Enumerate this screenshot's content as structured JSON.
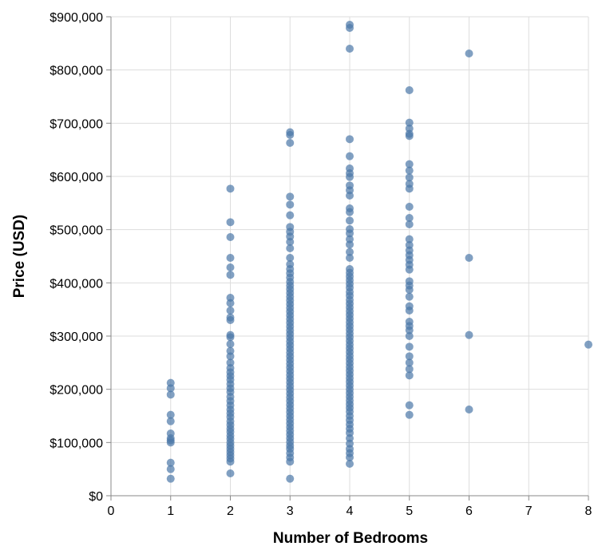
{
  "chart_data": {
    "type": "scatter",
    "title": "",
    "xlabel": "Number of Bedrooms",
    "ylabel": "Price (USD)",
    "xlim": [
      0,
      8
    ],
    "ylim": [
      0,
      900000
    ],
    "x_ticks": [
      "0",
      "1",
      "2",
      "3",
      "4",
      "5",
      "6",
      "7",
      "8"
    ],
    "y_ticks": [
      "$0",
      "$100,000",
      "$200,000",
      "$300,000",
      "$400,000",
      "$500,000",
      "$600,000",
      "$700,000",
      "$800,000",
      "$900,000"
    ],
    "grid": true,
    "point_color": "#4c78a8",
    "point_opacity": 0.7,
    "series": [
      {
        "points": [
          {
            "x": 1,
            "y": 212000
          },
          {
            "x": 1,
            "y": 202000
          },
          {
            "x": 1,
            "y": 190000
          },
          {
            "x": 1,
            "y": 152000
          },
          {
            "x": 1,
            "y": 140000
          },
          {
            "x": 1,
            "y": 117000
          },
          {
            "x": 1,
            "y": 108000
          },
          {
            "x": 1,
            "y": 104000
          },
          {
            "x": 1,
            "y": 100000
          },
          {
            "x": 1,
            "y": 62000
          },
          {
            "x": 1,
            "y": 50000
          },
          {
            "x": 1,
            "y": 32000
          },
          {
            "x": 2,
            "y": 577000
          },
          {
            "x": 2,
            "y": 514000
          },
          {
            "x": 2,
            "y": 486000
          },
          {
            "x": 2,
            "y": 447000
          },
          {
            "x": 2,
            "y": 429000
          },
          {
            "x": 2,
            "y": 415000
          },
          {
            "x": 2,
            "y": 372000
          },
          {
            "x": 2,
            "y": 362000
          },
          {
            "x": 2,
            "y": 348000
          },
          {
            "x": 2,
            "y": 335000
          },
          {
            "x": 2,
            "y": 330000
          },
          {
            "x": 2,
            "y": 302000
          },
          {
            "x": 2,
            "y": 298000
          },
          {
            "x": 2,
            "y": 285000
          },
          {
            "x": 2,
            "y": 272000
          },
          {
            "x": 2,
            "y": 262000
          },
          {
            "x": 2,
            "y": 250000
          },
          {
            "x": 2,
            "y": 240000
          },
          {
            "x": 2,
            "y": 232000
          },
          {
            "x": 2,
            "y": 225000
          },
          {
            "x": 2,
            "y": 218000
          },
          {
            "x": 2,
            "y": 210000
          },
          {
            "x": 2,
            "y": 202000
          },
          {
            "x": 2,
            "y": 195000
          },
          {
            "x": 2,
            "y": 186000
          },
          {
            "x": 2,
            "y": 178000
          },
          {
            "x": 2,
            "y": 170000
          },
          {
            "x": 2,
            "y": 162000
          },
          {
            "x": 2,
            "y": 155000
          },
          {
            "x": 2,
            "y": 148000
          },
          {
            "x": 2,
            "y": 140000
          },
          {
            "x": 2,
            "y": 133000
          },
          {
            "x": 2,
            "y": 126000
          },
          {
            "x": 2,
            "y": 120000
          },
          {
            "x": 2,
            "y": 113000
          },
          {
            "x": 2,
            "y": 107000
          },
          {
            "x": 2,
            "y": 100000
          },
          {
            "x": 2,
            "y": 94000
          },
          {
            "x": 2,
            "y": 88000
          },
          {
            "x": 2,
            "y": 82000
          },
          {
            "x": 2,
            "y": 76000
          },
          {
            "x": 2,
            "y": 70000
          },
          {
            "x": 2,
            "y": 64000
          },
          {
            "x": 2,
            "y": 42000
          },
          {
            "x": 3,
            "y": 683000
          },
          {
            "x": 3,
            "y": 678000
          },
          {
            "x": 3,
            "y": 663000
          },
          {
            "x": 3,
            "y": 562000
          },
          {
            "x": 3,
            "y": 547000
          },
          {
            "x": 3,
            "y": 527000
          },
          {
            "x": 3,
            "y": 505000
          },
          {
            "x": 3,
            "y": 496000
          },
          {
            "x": 3,
            "y": 487000
          },
          {
            "x": 3,
            "y": 477000
          },
          {
            "x": 3,
            "y": 465000
          },
          {
            "x": 3,
            "y": 447000
          },
          {
            "x": 3,
            "y": 435000
          },
          {
            "x": 3,
            "y": 426000
          },
          {
            "x": 3,
            "y": 418000
          },
          {
            "x": 3,
            "y": 410000
          },
          {
            "x": 3,
            "y": 402000
          },
          {
            "x": 3,
            "y": 395000
          },
          {
            "x": 3,
            "y": 388000
          },
          {
            "x": 3,
            "y": 381000
          },
          {
            "x": 3,
            "y": 374000
          },
          {
            "x": 3,
            "y": 367000
          },
          {
            "x": 3,
            "y": 360000
          },
          {
            "x": 3,
            "y": 353000
          },
          {
            "x": 3,
            "y": 346000
          },
          {
            "x": 3,
            "y": 339000
          },
          {
            "x": 3,
            "y": 332000
          },
          {
            "x": 3,
            "y": 325000
          },
          {
            "x": 3,
            "y": 318000
          },
          {
            "x": 3,
            "y": 311000
          },
          {
            "x": 3,
            "y": 304000
          },
          {
            "x": 3,
            "y": 297000
          },
          {
            "x": 3,
            "y": 290000
          },
          {
            "x": 3,
            "y": 283000
          },
          {
            "x": 3,
            "y": 276000
          },
          {
            "x": 3,
            "y": 269000
          },
          {
            "x": 3,
            "y": 262000
          },
          {
            "x": 3,
            "y": 255000
          },
          {
            "x": 3,
            "y": 248000
          },
          {
            "x": 3,
            "y": 241000
          },
          {
            "x": 3,
            "y": 234000
          },
          {
            "x": 3,
            "y": 227000
          },
          {
            "x": 3,
            "y": 220000
          },
          {
            "x": 3,
            "y": 213000
          },
          {
            "x": 3,
            "y": 206000
          },
          {
            "x": 3,
            "y": 199000
          },
          {
            "x": 3,
            "y": 192000
          },
          {
            "x": 3,
            "y": 185000
          },
          {
            "x": 3,
            "y": 178000
          },
          {
            "x": 3,
            "y": 171000
          },
          {
            "x": 3,
            "y": 164000
          },
          {
            "x": 3,
            "y": 157000
          },
          {
            "x": 3,
            "y": 150000
          },
          {
            "x": 3,
            "y": 143000
          },
          {
            "x": 3,
            "y": 136000
          },
          {
            "x": 3,
            "y": 129000
          },
          {
            "x": 3,
            "y": 122000
          },
          {
            "x": 3,
            "y": 115000
          },
          {
            "x": 3,
            "y": 108000
          },
          {
            "x": 3,
            "y": 101000
          },
          {
            "x": 3,
            "y": 94000
          },
          {
            "x": 3,
            "y": 88000
          },
          {
            "x": 3,
            "y": 80000
          },
          {
            "x": 3,
            "y": 72000
          },
          {
            "x": 3,
            "y": 64000
          },
          {
            "x": 3,
            "y": 32000
          },
          {
            "x": 4,
            "y": 885000
          },
          {
            "x": 4,
            "y": 879000
          },
          {
            "x": 4,
            "y": 840000
          },
          {
            "x": 4,
            "y": 670000
          },
          {
            "x": 4,
            "y": 638000
          },
          {
            "x": 4,
            "y": 615000
          },
          {
            "x": 4,
            "y": 606000
          },
          {
            "x": 4,
            "y": 599000
          },
          {
            "x": 4,
            "y": 583000
          },
          {
            "x": 4,
            "y": 574000
          },
          {
            "x": 4,
            "y": 564000
          },
          {
            "x": 4,
            "y": 540000
          },
          {
            "x": 4,
            "y": 533000
          },
          {
            "x": 4,
            "y": 517000
          },
          {
            "x": 4,
            "y": 501000
          },
          {
            "x": 4,
            "y": 493000
          },
          {
            "x": 4,
            "y": 482000
          },
          {
            "x": 4,
            "y": 472000
          },
          {
            "x": 4,
            "y": 458000
          },
          {
            "x": 4,
            "y": 447000
          },
          {
            "x": 4,
            "y": 426000
          },
          {
            "x": 4,
            "y": 419000
          },
          {
            "x": 4,
            "y": 412000
          },
          {
            "x": 4,
            "y": 405000
          },
          {
            "x": 4,
            "y": 398000
          },
          {
            "x": 4,
            "y": 391000
          },
          {
            "x": 4,
            "y": 383000
          },
          {
            "x": 4,
            "y": 376000
          },
          {
            "x": 4,
            "y": 368000
          },
          {
            "x": 4,
            "y": 361000
          },
          {
            "x": 4,
            "y": 354000
          },
          {
            "x": 4,
            "y": 347000
          },
          {
            "x": 4,
            "y": 340000
          },
          {
            "x": 4,
            "y": 333000
          },
          {
            "x": 4,
            "y": 326000
          },
          {
            "x": 4,
            "y": 319000
          },
          {
            "x": 4,
            "y": 312000
          },
          {
            "x": 4,
            "y": 305000
          },
          {
            "x": 4,
            "y": 298000
          },
          {
            "x": 4,
            "y": 291000
          },
          {
            "x": 4,
            "y": 284000
          },
          {
            "x": 4,
            "y": 277000
          },
          {
            "x": 4,
            "y": 270000
          },
          {
            "x": 4,
            "y": 263000
          },
          {
            "x": 4,
            "y": 256000
          },
          {
            "x": 4,
            "y": 249000
          },
          {
            "x": 4,
            "y": 242000
          },
          {
            "x": 4,
            "y": 235000
          },
          {
            "x": 4,
            "y": 228000
          },
          {
            "x": 4,
            "y": 221000
          },
          {
            "x": 4,
            "y": 214000
          },
          {
            "x": 4,
            "y": 207000
          },
          {
            "x": 4,
            "y": 200000
          },
          {
            "x": 4,
            "y": 193000
          },
          {
            "x": 4,
            "y": 186000
          },
          {
            "x": 4,
            "y": 179000
          },
          {
            "x": 4,
            "y": 172000
          },
          {
            "x": 4,
            "y": 165000
          },
          {
            "x": 4,
            "y": 158000
          },
          {
            "x": 4,
            "y": 150000
          },
          {
            "x": 4,
            "y": 142000
          },
          {
            "x": 4,
            "y": 134000
          },
          {
            "x": 4,
            "y": 126000
          },
          {
            "x": 4,
            "y": 118000
          },
          {
            "x": 4,
            "y": 108000
          },
          {
            "x": 4,
            "y": 98000
          },
          {
            "x": 4,
            "y": 88000
          },
          {
            "x": 4,
            "y": 80000
          },
          {
            "x": 4,
            "y": 72000
          },
          {
            "x": 4,
            "y": 60000
          },
          {
            "x": 5,
            "y": 762000
          },
          {
            "x": 5,
            "y": 701000
          },
          {
            "x": 5,
            "y": 690000
          },
          {
            "x": 5,
            "y": 680000
          },
          {
            "x": 5,
            "y": 676000
          },
          {
            "x": 5,
            "y": 623000
          },
          {
            "x": 5,
            "y": 611000
          },
          {
            "x": 5,
            "y": 598000
          },
          {
            "x": 5,
            "y": 586000
          },
          {
            "x": 5,
            "y": 577000
          },
          {
            "x": 5,
            "y": 543000
          },
          {
            "x": 5,
            "y": 522000
          },
          {
            "x": 5,
            "y": 510000
          },
          {
            "x": 5,
            "y": 482000
          },
          {
            "x": 5,
            "y": 471000
          },
          {
            "x": 5,
            "y": 461000
          },
          {
            "x": 5,
            "y": 452000
          },
          {
            "x": 5,
            "y": 443000
          },
          {
            "x": 5,
            "y": 434000
          },
          {
            "x": 5,
            "y": 425000
          },
          {
            "x": 5,
            "y": 403000
          },
          {
            "x": 5,
            "y": 395000
          },
          {
            "x": 5,
            "y": 387000
          },
          {
            "x": 5,
            "y": 374000
          },
          {
            "x": 5,
            "y": 356000
          },
          {
            "x": 5,
            "y": 348000
          },
          {
            "x": 5,
            "y": 327000
          },
          {
            "x": 5,
            "y": 319000
          },
          {
            "x": 5,
            "y": 311000
          },
          {
            "x": 5,
            "y": 300000
          },
          {
            "x": 5,
            "y": 280000
          },
          {
            "x": 5,
            "y": 262000
          },
          {
            "x": 5,
            "y": 250000
          },
          {
            "x": 5,
            "y": 238000
          },
          {
            "x": 5,
            "y": 226000
          },
          {
            "x": 5,
            "y": 170000
          },
          {
            "x": 5,
            "y": 152000
          },
          {
            "x": 6,
            "y": 831000
          },
          {
            "x": 6,
            "y": 447000
          },
          {
            "x": 6,
            "y": 302000
          },
          {
            "x": 6,
            "y": 162000
          },
          {
            "x": 8,
            "y": 284000
          }
        ]
      }
    ]
  }
}
